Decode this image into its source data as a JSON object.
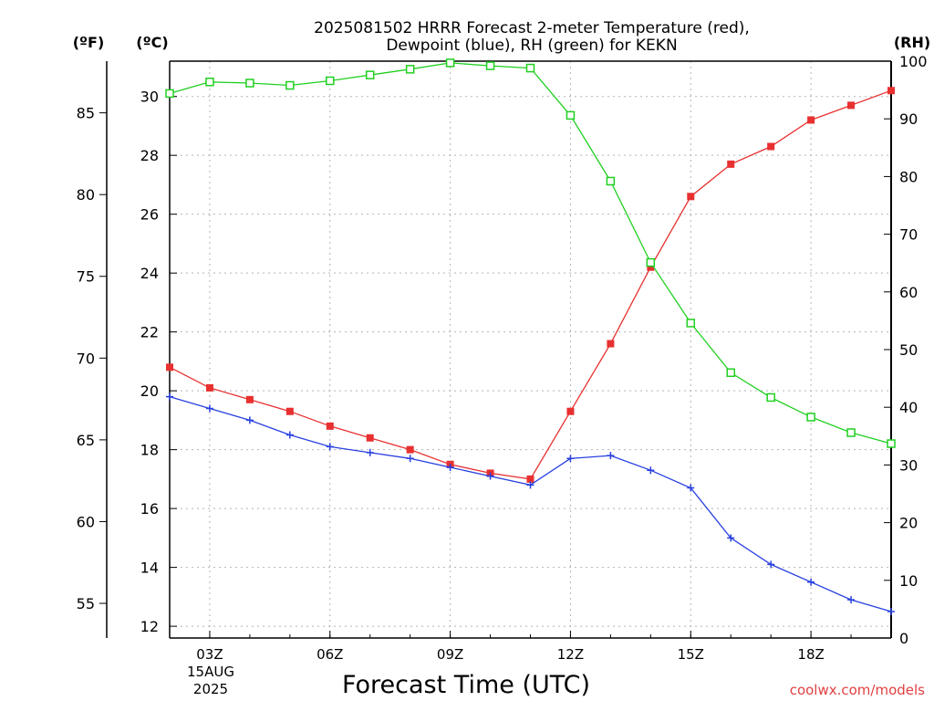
{
  "chart_data": {
    "type": "line",
    "title_line1": "2025081502 HRRR Forecast 2-meter Temperature (red),",
    "title_line2": "Dewpoint (blue), RH (green) for KEKN",
    "xlabel": "Forecast Time (UTC)",
    "credit": "coolwx.com/models",
    "unit_f": "(ºF)",
    "unit_c": "(ºC)",
    "unit_rh": "(RH)",
    "date_line1": "15AUG",
    "date_line2": "2025",
    "x_hours": [
      2,
      3,
      4,
      5,
      6,
      7,
      8,
      9,
      10,
      11,
      12,
      13,
      14,
      15,
      16,
      17,
      18,
      19,
      20
    ],
    "x_ticks": [
      {
        "hour": 3,
        "label": "03Z"
      },
      {
        "hour": 6,
        "label": "06Z"
      },
      {
        "hour": 9,
        "label": "09Z"
      },
      {
        "hour": 12,
        "label": "12Z"
      },
      {
        "hour": 15,
        "label": "15Z"
      },
      {
        "hour": 18,
        "label": "18Z"
      }
    ],
    "xlim": [
      2,
      20
    ],
    "ylim_c": [
      11.6,
      31.2
    ],
    "ylim_rh": [
      0,
      100
    ],
    "yticks_c": [
      12,
      14,
      16,
      18,
      20,
      22,
      24,
      26,
      28,
      30
    ],
    "yticks_f": [
      55,
      60,
      65,
      70,
      75,
      80,
      85
    ],
    "yticks_rh": [
      0,
      10,
      20,
      30,
      40,
      50,
      60,
      70,
      80,
      90,
      100
    ],
    "grid": true,
    "series": [
      {
        "name": "Temperature",
        "color": "#e83030",
        "axis": "c",
        "marker": "filled-square",
        "values": [
          20.8,
          20.1,
          19.7,
          19.3,
          18.8,
          18.4,
          18.0,
          17.5,
          17.2,
          17.0,
          19.3,
          21.6,
          24.2,
          26.6,
          27.7,
          28.3,
          29.2,
          29.7,
          30.2
        ]
      },
      {
        "name": "Dewpoint",
        "color": "#2840e0",
        "axis": "c",
        "marker": "plus",
        "values": [
          19.8,
          19.4,
          19.0,
          18.5,
          18.1,
          17.9,
          17.7,
          17.4,
          17.1,
          16.8,
          17.7,
          17.8,
          17.3,
          16.7,
          15.0,
          14.1,
          13.5,
          12.9,
          12.5
        ]
      },
      {
        "name": "RH",
        "color": "#20d020",
        "axis": "rh",
        "marker": "open-square",
        "values": [
          94.4,
          96.4,
          96.2,
          95.8,
          96.6,
          97.6,
          98.6,
          99.7,
          99.2,
          98.8,
          90.6,
          79.2,
          65.1,
          54.6,
          46.0,
          41.7,
          38.3,
          35.6,
          33.7
        ]
      }
    ]
  }
}
